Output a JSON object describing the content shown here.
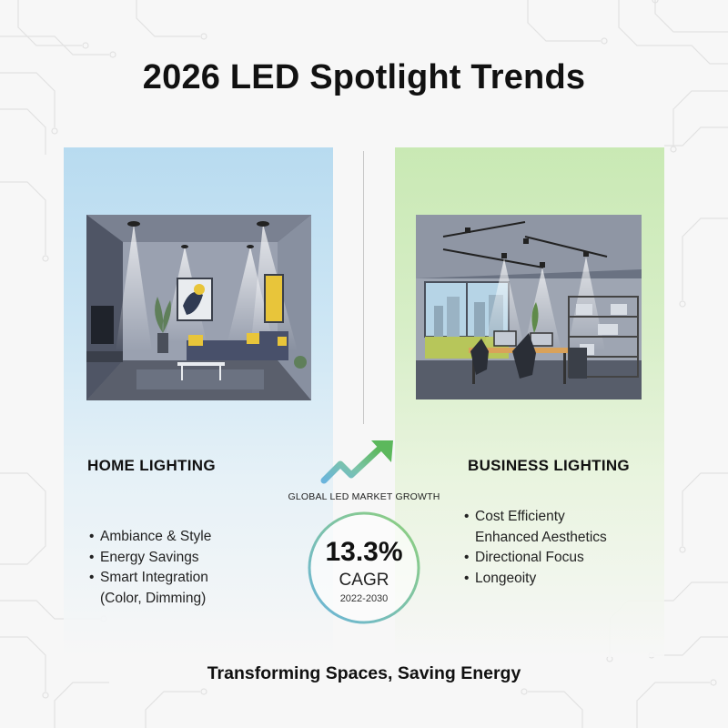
{
  "title": "2026 LED Spotlight Trends",
  "home": {
    "heading": "HOME LIGHTING",
    "items": [
      {
        "lines": [
          "Ambiance & Style"
        ]
      },
      {
        "lines": [
          "Energy Savings"
        ]
      },
      {
        "lines": [
          "Smart Integration",
          "(Color, Dimming)"
        ]
      }
    ]
  },
  "business": {
    "heading": "BUSINESS LIGHTING",
    "items": [
      {
        "lines": [
          "Cost Efficienty",
          "Enhanced Aesthetics"
        ]
      },
      {
        "lines": [
          "Directional Focus"
        ]
      },
      {
        "lines": [
          "Longeoity"
        ]
      }
    ]
  },
  "growth": {
    "label": "GLOBAL LED MARKET GROWTH",
    "value": "13.3%",
    "unit": "CAGR",
    "years": "2022-2030"
  },
  "tagline": "Transforming Spaces, Saving Energy",
  "colors": {
    "home_panel": "#b8dbf0",
    "business_panel": "#c9e9b4",
    "arrow_blue": "#6ab4dc",
    "arrow_green": "#5cb85c",
    "accent_yellow": "#e8c53a"
  },
  "icons": {
    "growth": "growth-arrow-icon",
    "bullet": "bullet-dot"
  }
}
